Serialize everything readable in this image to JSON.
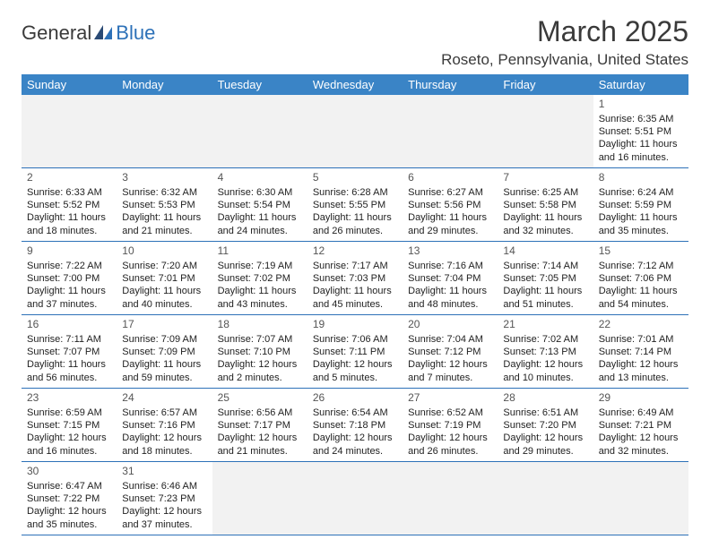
{
  "logo": {
    "part1": "General",
    "part2": "Blue"
  },
  "title": "March 2025",
  "location": "Roseto, Pennsylvania, United States",
  "colors": {
    "header_bg": "#3a84c6",
    "header_text": "#ffffff",
    "border": "#2d71b8",
    "empty_bg": "#f2f2f2",
    "logo_dark": "#3a3a3a",
    "logo_blue": "#2d71b8"
  },
  "weekdays": [
    "Sunday",
    "Monday",
    "Tuesday",
    "Wednesday",
    "Thursday",
    "Friday",
    "Saturday"
  ],
  "weeks": [
    [
      null,
      null,
      null,
      null,
      null,
      null,
      {
        "n": "1",
        "sunrise": "Sunrise: 6:35 AM",
        "sunset": "Sunset: 5:51 PM",
        "day": "Daylight: 11 hours and 16 minutes."
      }
    ],
    [
      {
        "n": "2",
        "sunrise": "Sunrise: 6:33 AM",
        "sunset": "Sunset: 5:52 PM",
        "day": "Daylight: 11 hours and 18 minutes."
      },
      {
        "n": "3",
        "sunrise": "Sunrise: 6:32 AM",
        "sunset": "Sunset: 5:53 PM",
        "day": "Daylight: 11 hours and 21 minutes."
      },
      {
        "n": "4",
        "sunrise": "Sunrise: 6:30 AM",
        "sunset": "Sunset: 5:54 PM",
        "day": "Daylight: 11 hours and 24 minutes."
      },
      {
        "n": "5",
        "sunrise": "Sunrise: 6:28 AM",
        "sunset": "Sunset: 5:55 PM",
        "day": "Daylight: 11 hours and 26 minutes."
      },
      {
        "n": "6",
        "sunrise": "Sunrise: 6:27 AM",
        "sunset": "Sunset: 5:56 PM",
        "day": "Daylight: 11 hours and 29 minutes."
      },
      {
        "n": "7",
        "sunrise": "Sunrise: 6:25 AM",
        "sunset": "Sunset: 5:58 PM",
        "day": "Daylight: 11 hours and 32 minutes."
      },
      {
        "n": "8",
        "sunrise": "Sunrise: 6:24 AM",
        "sunset": "Sunset: 5:59 PM",
        "day": "Daylight: 11 hours and 35 minutes."
      }
    ],
    [
      {
        "n": "9",
        "sunrise": "Sunrise: 7:22 AM",
        "sunset": "Sunset: 7:00 PM",
        "day": "Daylight: 11 hours and 37 minutes."
      },
      {
        "n": "10",
        "sunrise": "Sunrise: 7:20 AM",
        "sunset": "Sunset: 7:01 PM",
        "day": "Daylight: 11 hours and 40 minutes."
      },
      {
        "n": "11",
        "sunrise": "Sunrise: 7:19 AM",
        "sunset": "Sunset: 7:02 PM",
        "day": "Daylight: 11 hours and 43 minutes."
      },
      {
        "n": "12",
        "sunrise": "Sunrise: 7:17 AM",
        "sunset": "Sunset: 7:03 PM",
        "day": "Daylight: 11 hours and 45 minutes."
      },
      {
        "n": "13",
        "sunrise": "Sunrise: 7:16 AM",
        "sunset": "Sunset: 7:04 PM",
        "day": "Daylight: 11 hours and 48 minutes."
      },
      {
        "n": "14",
        "sunrise": "Sunrise: 7:14 AM",
        "sunset": "Sunset: 7:05 PM",
        "day": "Daylight: 11 hours and 51 minutes."
      },
      {
        "n": "15",
        "sunrise": "Sunrise: 7:12 AM",
        "sunset": "Sunset: 7:06 PM",
        "day": "Daylight: 11 hours and 54 minutes."
      }
    ],
    [
      {
        "n": "16",
        "sunrise": "Sunrise: 7:11 AM",
        "sunset": "Sunset: 7:07 PM",
        "day": "Daylight: 11 hours and 56 minutes."
      },
      {
        "n": "17",
        "sunrise": "Sunrise: 7:09 AM",
        "sunset": "Sunset: 7:09 PM",
        "day": "Daylight: 11 hours and 59 minutes."
      },
      {
        "n": "18",
        "sunrise": "Sunrise: 7:07 AM",
        "sunset": "Sunset: 7:10 PM",
        "day": "Daylight: 12 hours and 2 minutes."
      },
      {
        "n": "19",
        "sunrise": "Sunrise: 7:06 AM",
        "sunset": "Sunset: 7:11 PM",
        "day": "Daylight: 12 hours and 5 minutes."
      },
      {
        "n": "20",
        "sunrise": "Sunrise: 7:04 AM",
        "sunset": "Sunset: 7:12 PM",
        "day": "Daylight: 12 hours and 7 minutes."
      },
      {
        "n": "21",
        "sunrise": "Sunrise: 7:02 AM",
        "sunset": "Sunset: 7:13 PM",
        "day": "Daylight: 12 hours and 10 minutes."
      },
      {
        "n": "22",
        "sunrise": "Sunrise: 7:01 AM",
        "sunset": "Sunset: 7:14 PM",
        "day": "Daylight: 12 hours and 13 minutes."
      }
    ],
    [
      {
        "n": "23",
        "sunrise": "Sunrise: 6:59 AM",
        "sunset": "Sunset: 7:15 PM",
        "day": "Daylight: 12 hours and 16 minutes."
      },
      {
        "n": "24",
        "sunrise": "Sunrise: 6:57 AM",
        "sunset": "Sunset: 7:16 PM",
        "day": "Daylight: 12 hours and 18 minutes."
      },
      {
        "n": "25",
        "sunrise": "Sunrise: 6:56 AM",
        "sunset": "Sunset: 7:17 PM",
        "day": "Daylight: 12 hours and 21 minutes."
      },
      {
        "n": "26",
        "sunrise": "Sunrise: 6:54 AM",
        "sunset": "Sunset: 7:18 PM",
        "day": "Daylight: 12 hours and 24 minutes."
      },
      {
        "n": "27",
        "sunrise": "Sunrise: 6:52 AM",
        "sunset": "Sunset: 7:19 PM",
        "day": "Daylight: 12 hours and 26 minutes."
      },
      {
        "n": "28",
        "sunrise": "Sunrise: 6:51 AM",
        "sunset": "Sunset: 7:20 PM",
        "day": "Daylight: 12 hours and 29 minutes."
      },
      {
        "n": "29",
        "sunrise": "Sunrise: 6:49 AM",
        "sunset": "Sunset: 7:21 PM",
        "day": "Daylight: 12 hours and 32 minutes."
      }
    ],
    [
      {
        "n": "30",
        "sunrise": "Sunrise: 6:47 AM",
        "sunset": "Sunset: 7:22 PM",
        "day": "Daylight: 12 hours and 35 minutes."
      },
      {
        "n": "31",
        "sunrise": "Sunrise: 6:46 AM",
        "sunset": "Sunset: 7:23 PM",
        "day": "Daylight: 12 hours and 37 minutes."
      },
      null,
      null,
      null,
      null,
      null
    ]
  ]
}
